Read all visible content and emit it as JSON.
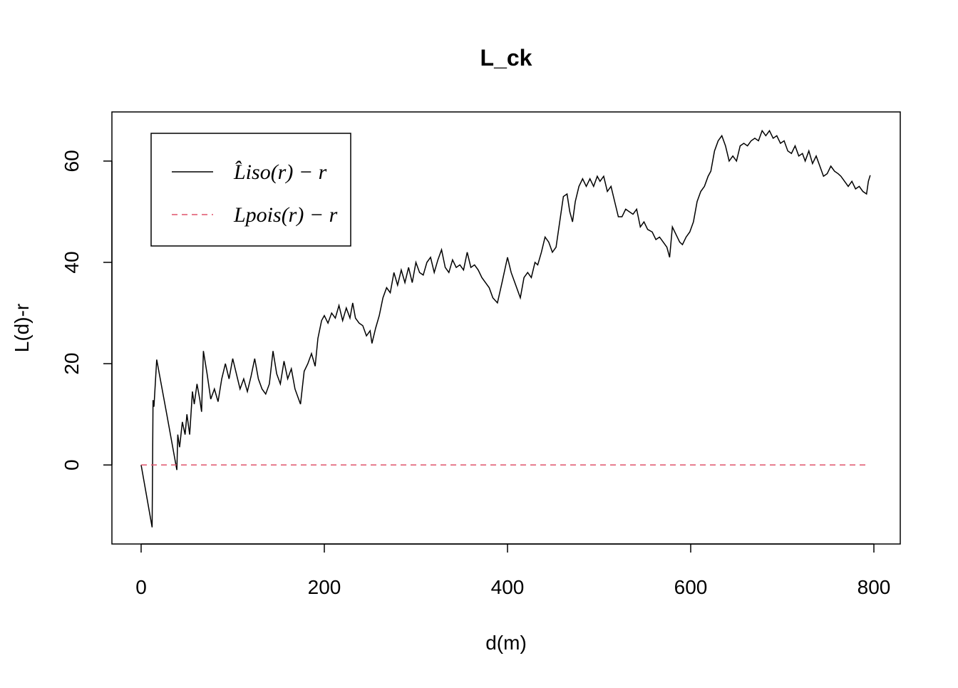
{
  "chart_data": {
    "type": "line",
    "title": "L_ck",
    "x_label": "d(m)",
    "y_label": "L(d)-r",
    "xlim": [
      -31.9,
      828.8
    ],
    "ylim": [
      -15.6,
      69.7
    ],
    "xticks": [
      0,
      200,
      400,
      600,
      800
    ],
    "yticks": [
      0,
      20,
      40,
      60
    ],
    "legend": "top-left",
    "series": [
      {
        "name": "L̂iso(r) − r",
        "color": "#000000",
        "dash": "solid",
        "x": [
          0,
          12,
          13,
          14,
          17,
          28,
          39,
          40,
          42,
          45,
          48,
          50,
          53,
          56,
          58,
          61,
          64,
          66,
          68,
          72,
          76,
          80,
          84,
          88,
          92,
          96,
          100,
          104,
          108,
          112,
          116,
          120,
          124,
          128,
          132,
          136,
          140,
          144,
          148,
          152,
          156,
          160,
          164,
          168,
          172,
          174,
          178,
          182,
          186,
          190,
          193,
          197,
          200,
          204,
          208,
          212,
          216,
          220,
          224,
          228,
          231,
          234,
          238,
          242,
          246,
          250,
          252,
          256,
          260,
          264,
          268,
          272,
          276,
          280,
          284,
          288,
          292,
          296,
          300,
          304,
          308,
          312,
          316,
          320,
          324,
          328,
          332,
          336,
          340,
          344,
          348,
          352,
          356,
          360,
          364,
          368,
          372,
          376,
          380,
          384,
          389,
          394,
          400,
          404,
          408,
          414,
          418,
          422,
          426,
          430,
          433,
          437,
          441,
          445,
          449,
          453,
          457,
          461,
          465,
          468,
          471,
          474,
          478,
          482,
          486,
          490,
          494,
          498,
          501,
          505,
          509,
          513,
          517,
          521,
          525,
          529,
          533,
          537,
          541,
          545,
          549,
          553,
          558,
          562,
          566,
          570,
          574,
          577,
          580,
          584,
          588,
          591,
          595,
          599,
          603,
          607,
          611,
          615,
          619,
          622,
          626,
          630,
          634,
          638,
          642,
          646,
          650,
          654,
          658,
          662,
          666,
          670,
          674,
          678,
          682,
          686,
          690,
          694,
          698,
          702,
          706,
          710,
          714,
          718,
          722,
          725,
          729,
          733,
          737,
          741,
          745,
          749,
          753,
          757,
          761,
          764,
          768,
          772,
          776,
          780,
          784,
          788,
          792,
          794,
          796
        ],
        "values": [
          0,
          -12.3,
          12.8,
          11.5,
          20.8,
          10,
          -1,
          6,
          3.5,
          8.5,
          6,
          10,
          6,
          14.5,
          12,
          16,
          13,
          10.5,
          22.5,
          18,
          13,
          15,
          12.5,
          17,
          20,
          17,
          21,
          18,
          15,
          17,
          14.5,
          17.5,
          21,
          17,
          15,
          14,
          16,
          22.5,
          18,
          16,
          20.5,
          17,
          19,
          15,
          13,
          12,
          18.5,
          20,
          22,
          19.5,
          25,
          28.5,
          29.5,
          28,
          30,
          29,
          31.5,
          28.5,
          31,
          29,
          32,
          29,
          28,
          27.5,
          25.5,
          26.5,
          24,
          27,
          29.5,
          33,
          35,
          34,
          38,
          35.5,
          38.5,
          36,
          39,
          36,
          40,
          38,
          37.5,
          40,
          41,
          38,
          40.5,
          42.5,
          39,
          38,
          40.5,
          39,
          39.5,
          38.5,
          42,
          39,
          39.5,
          38.5,
          37,
          36,
          35,
          33,
          32,
          36,
          41,
          38,
          36,
          33,
          37,
          38,
          37,
          40,
          39.5,
          42,
          45,
          44,
          42,
          43,
          48,
          53,
          53.5,
          50,
          48,
          52,
          55,
          56.5,
          55,
          56.5,
          55,
          57,
          56,
          57,
          54,
          55,
          52,
          49,
          49,
          50.5,
          50,
          49.5,
          50.5,
          47,
          48,
          46.5,
          46,
          44.5,
          45,
          44,
          43,
          41,
          47,
          45.5,
          44,
          43.5,
          45,
          46,
          48,
          52,
          54,
          55,
          57,
          58,
          62,
          64,
          65,
          63,
          60,
          61,
          60,
          63,
          63.5,
          63,
          64,
          64.5,
          64,
          66,
          65,
          66,
          64.5,
          65,
          63.5,
          64,
          62,
          61.5,
          63,
          61,
          61.5,
          60,
          62,
          59.5,
          61,
          59,
          57,
          57.5,
          59,
          58,
          57.5,
          57,
          56,
          55,
          56,
          54.5,
          55,
          54,
          53.5,
          56,
          57.2
        ]
      },
      {
        "name": "Lpois(r) − r",
        "color": "#df536b",
        "dash": "dashed",
        "x": [
          0,
          795
        ],
        "values": [
          0,
          0
        ]
      }
    ]
  }
}
